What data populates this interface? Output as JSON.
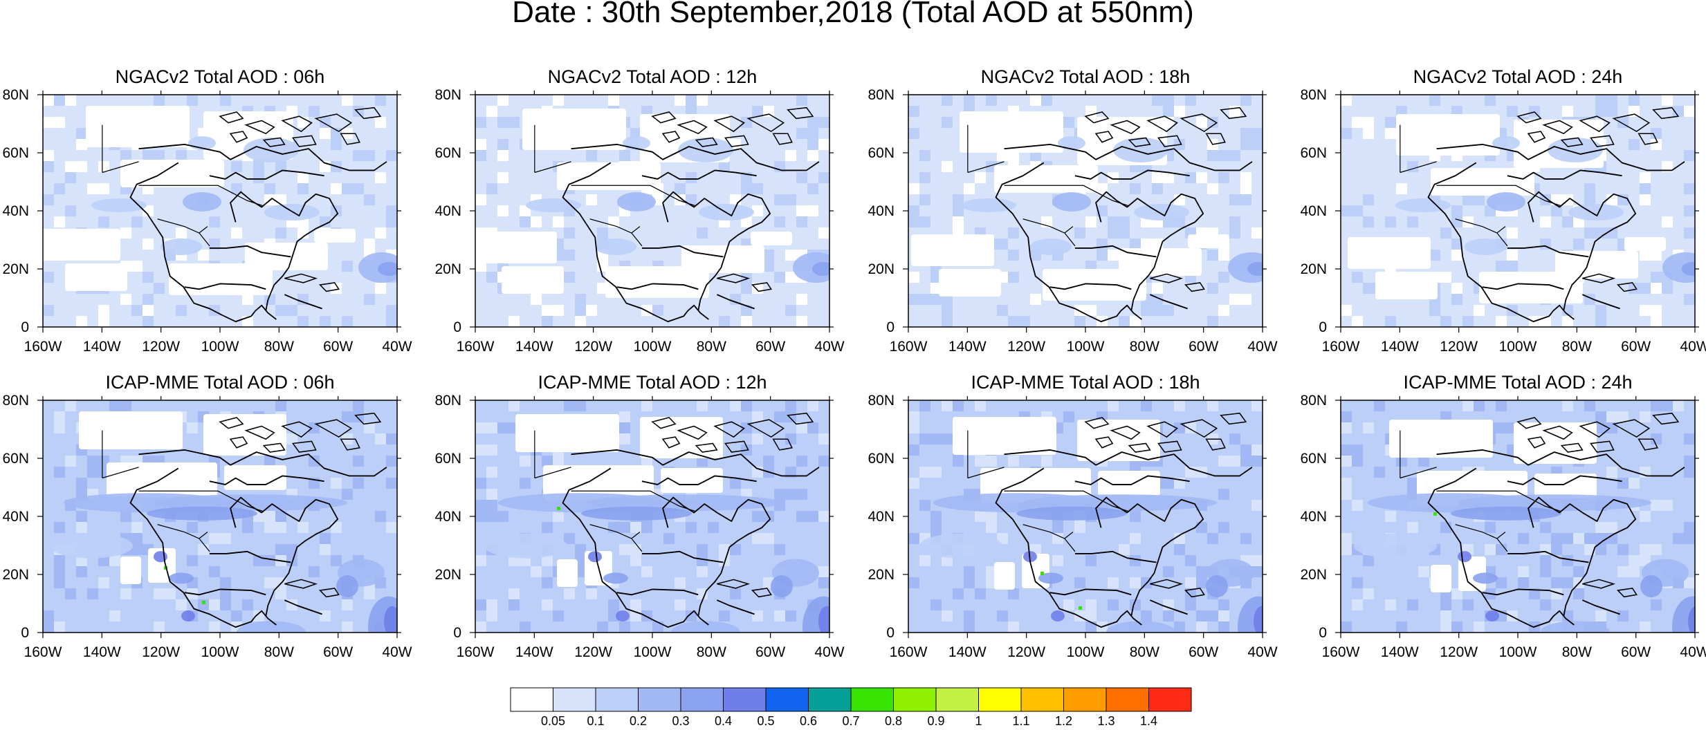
{
  "figure": {
    "title": "Date : 30th September,2018 (Total AOD at 550nm)"
  },
  "axes": {
    "x_ticks": [
      "160W",
      "140W",
      "120W",
      "100W",
      "80W",
      "60W",
      "40W"
    ],
    "y_ticks": [
      "80N",
      "60N",
      "40N",
      "20N",
      "0"
    ],
    "lon_range": [
      -160,
      -40
    ],
    "lat_range": [
      0,
      80
    ]
  },
  "panels": [
    {
      "title": "NGACv2 Total AOD : 06h",
      "model": "NGACv2",
      "hour": "06h"
    },
    {
      "title": "NGACv2 Total AOD : 12h",
      "model": "NGACv2",
      "hour": "12h"
    },
    {
      "title": "NGACv2 Total AOD : 18h",
      "model": "NGACv2",
      "hour": "18h"
    },
    {
      "title": "NGACv2 Total AOD : 24h",
      "model": "NGACv2",
      "hour": "24h"
    },
    {
      "title": "ICAP-MME Total AOD : 06h",
      "model": "ICAP-MME",
      "hour": "06h"
    },
    {
      "title": "ICAP-MME Total AOD : 12h",
      "model": "ICAP-MME",
      "hour": "12h"
    },
    {
      "title": "ICAP-MME Total AOD : 18h",
      "model": "ICAP-MME",
      "hour": "18h"
    },
    {
      "title": "ICAP-MME Total AOD : 24h",
      "model": "ICAP-MME",
      "hour": "24h"
    }
  ],
  "colorbar": {
    "labels": [
      "0.05",
      "0.1",
      "0.2",
      "0.3",
      "0.4",
      "0.5",
      "0.6",
      "0.7",
      "0.8",
      "0.9",
      "1",
      "1.1",
      "1.2",
      "1.3",
      "1.4"
    ],
    "colors": [
      "#ffffff",
      "#d7e3fb",
      "#bccff8",
      "#a1b8f4",
      "#8aa2f0",
      "#6f7eea",
      "#1464f2",
      "#06a098",
      "#37e300",
      "#8ff000",
      "#c2f044",
      "#ffff00",
      "#ffc000",
      "#ff9c00",
      "#ff7000",
      "#ff2a14"
    ]
  },
  "colors": {
    "land_line": "#000000",
    "ngac_base": "#d7e3fb",
    "icap_base": "#bccff8"
  }
}
